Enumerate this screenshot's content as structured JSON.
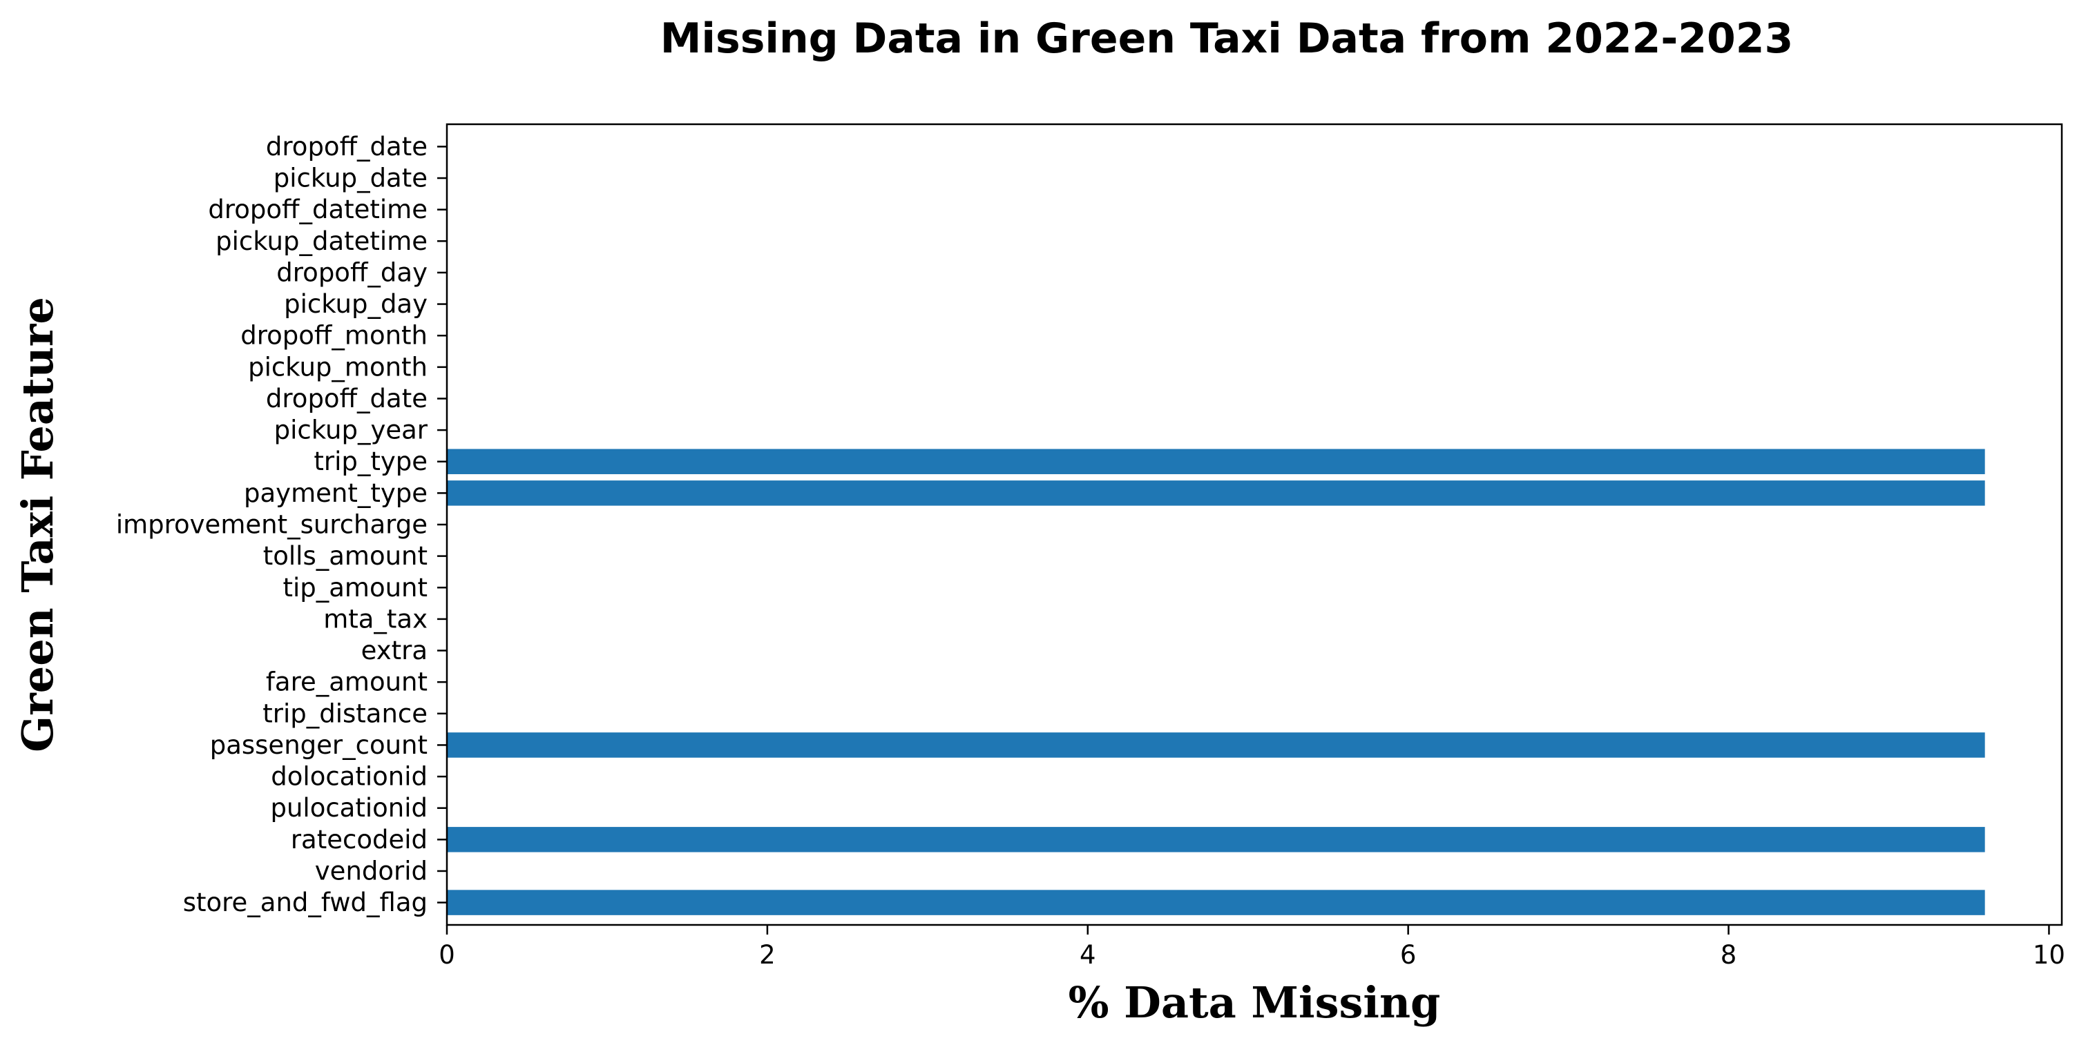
{
  "chart_data": {
    "type": "bar",
    "orientation": "horizontal",
    "title": "Missing Data in Green Taxi Data from 2022-2023",
    "xlabel": "% Data Missing",
    "ylabel": "Green Taxi Feature",
    "xlim": [
      0,
      10.08
    ],
    "xticks": [
      0,
      2,
      4,
      6,
      8,
      10
    ],
    "grid": false,
    "legend": "none",
    "bar_color": "#1f77b4",
    "categories": [
      "store_and_fwd_flag",
      "vendorid",
      "ratecodeid",
      "pulocationid",
      "dolocationid",
      "passenger_count",
      "trip_distance",
      "fare_amount",
      "extra",
      "mta_tax",
      "tip_amount",
      "tolls_amount",
      "improvement_surcharge",
      "payment_type",
      "trip_type",
      "pickup_year",
      "dropoff_date",
      "pickup_month",
      "dropoff_month",
      "pickup_day",
      "dropoff_day",
      "pickup_datetime",
      "dropoff_datetime",
      "pickup_date",
      "dropoff_date"
    ],
    "values": [
      9.6,
      0,
      9.6,
      0,
      0,
      9.6,
      0,
      0,
      0,
      0,
      0,
      0,
      0,
      9.6,
      9.6,
      0,
      0,
      0,
      0,
      0,
      0,
      0,
      0,
      0,
      0
    ]
  }
}
